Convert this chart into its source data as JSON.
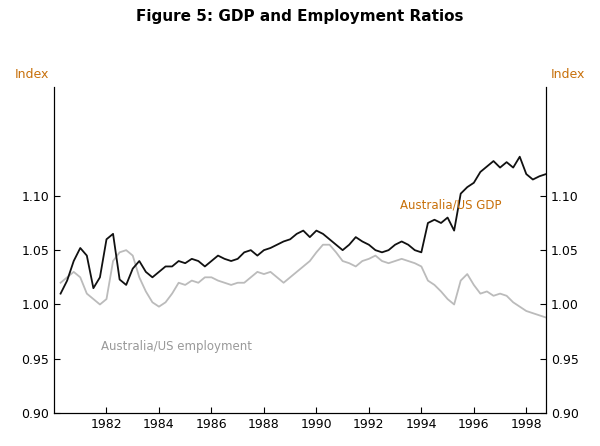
{
  "title": "Figure 5: GDP and Employment Ratios",
  "ylabel_left": "Index",
  "ylabel_right": "Index",
  "label_color": "#C8700A",
  "ylim": [
    0.9,
    1.2
  ],
  "yticks": [
    0.9,
    0.95,
    1.0,
    1.05,
    1.1
  ],
  "xlim": [
    1980.0,
    1998.75
  ],
  "xticks": [
    1982,
    1984,
    1986,
    1988,
    1990,
    1992,
    1994,
    1996,
    1998
  ],
  "gdp_label": "Australia/US GDP",
  "emp_label": "Australia/US employment",
  "gdp_color": "#111111",
  "emp_color": "#bbbbbb",
  "background_color": "#ffffff",
  "gdp_x": [
    1980.25,
    1980.5,
    1980.75,
    1981.0,
    1981.25,
    1981.5,
    1981.75,
    1982.0,
    1982.25,
    1982.5,
    1982.75,
    1983.0,
    1983.25,
    1983.5,
    1983.75,
    1984.0,
    1984.25,
    1984.5,
    1984.75,
    1985.0,
    1985.25,
    1985.5,
    1985.75,
    1986.0,
    1986.25,
    1986.5,
    1986.75,
    1987.0,
    1987.25,
    1987.5,
    1987.75,
    1988.0,
    1988.25,
    1988.5,
    1988.75,
    1989.0,
    1989.25,
    1989.5,
    1989.75,
    1990.0,
    1990.25,
    1990.5,
    1990.75,
    1991.0,
    1991.25,
    1991.5,
    1991.75,
    1992.0,
    1992.25,
    1992.5,
    1992.75,
    1993.0,
    1993.25,
    1993.5,
    1993.75,
    1994.0,
    1994.25,
    1994.5,
    1994.75,
    1995.0,
    1995.25,
    1995.5,
    1995.75,
    1996.0,
    1996.25,
    1996.5,
    1996.75,
    1997.0,
    1997.25,
    1997.5,
    1997.75,
    1998.0,
    1998.25,
    1998.5,
    1998.75
  ],
  "gdp_y": [
    1.01,
    1.022,
    1.04,
    1.052,
    1.045,
    1.015,
    1.025,
    1.06,
    1.065,
    1.023,
    1.018,
    1.033,
    1.04,
    1.03,
    1.025,
    1.03,
    1.035,
    1.035,
    1.04,
    1.038,
    1.042,
    1.04,
    1.035,
    1.04,
    1.045,
    1.042,
    1.04,
    1.042,
    1.048,
    1.05,
    1.045,
    1.05,
    1.052,
    1.055,
    1.058,
    1.06,
    1.065,
    1.068,
    1.062,
    1.068,
    1.065,
    1.06,
    1.055,
    1.05,
    1.055,
    1.062,
    1.058,
    1.055,
    1.05,
    1.048,
    1.05,
    1.055,
    1.058,
    1.055,
    1.05,
    1.048,
    1.075,
    1.078,
    1.075,
    1.08,
    1.068,
    1.102,
    1.108,
    1.112,
    1.122,
    1.127,
    1.132,
    1.126,
    1.131,
    1.126,
    1.136,
    1.12,
    1.115,
    1.118,
    1.12
  ],
  "emp_x": [
    1980.25,
    1980.5,
    1980.75,
    1981.0,
    1981.25,
    1981.5,
    1981.75,
    1982.0,
    1982.25,
    1982.5,
    1982.75,
    1983.0,
    1983.25,
    1983.5,
    1983.75,
    1984.0,
    1984.25,
    1984.5,
    1984.75,
    1985.0,
    1985.25,
    1985.5,
    1985.75,
    1986.0,
    1986.25,
    1986.5,
    1986.75,
    1987.0,
    1987.25,
    1987.5,
    1987.75,
    1988.0,
    1988.25,
    1988.5,
    1988.75,
    1989.0,
    1989.25,
    1989.5,
    1989.75,
    1990.0,
    1990.25,
    1990.5,
    1990.75,
    1991.0,
    1991.25,
    1991.5,
    1991.75,
    1992.0,
    1992.25,
    1992.5,
    1992.75,
    1993.0,
    1993.25,
    1993.5,
    1993.75,
    1994.0,
    1994.25,
    1994.5,
    1994.75,
    1995.0,
    1995.25,
    1995.5,
    1995.75,
    1996.0,
    1996.25,
    1996.5,
    1996.75,
    1997.0,
    1997.25,
    1997.5,
    1997.75,
    1998.0,
    1998.25,
    1998.5,
    1998.75
  ],
  "emp_y": [
    1.02,
    1.025,
    1.03,
    1.025,
    1.01,
    1.005,
    1.0,
    1.005,
    1.04,
    1.048,
    1.05,
    1.045,
    1.025,
    1.012,
    1.002,
    0.998,
    1.002,
    1.01,
    1.02,
    1.018,
    1.022,
    1.02,
    1.025,
    1.025,
    1.022,
    1.02,
    1.018,
    1.02,
    1.02,
    1.025,
    1.03,
    1.028,
    1.03,
    1.025,
    1.02,
    1.025,
    1.03,
    1.035,
    1.04,
    1.048,
    1.055,
    1.055,
    1.048,
    1.04,
    1.038,
    1.035,
    1.04,
    1.042,
    1.045,
    1.04,
    1.038,
    1.04,
    1.042,
    1.04,
    1.038,
    1.035,
    1.022,
    1.018,
    1.012,
    1.005,
    1.0,
    1.022,
    1.028,
    1.018,
    1.01,
    1.012,
    1.008,
    1.01,
    1.008,
    1.002,
    0.998,
    0.994,
    0.992,
    0.99,
    0.988
  ]
}
